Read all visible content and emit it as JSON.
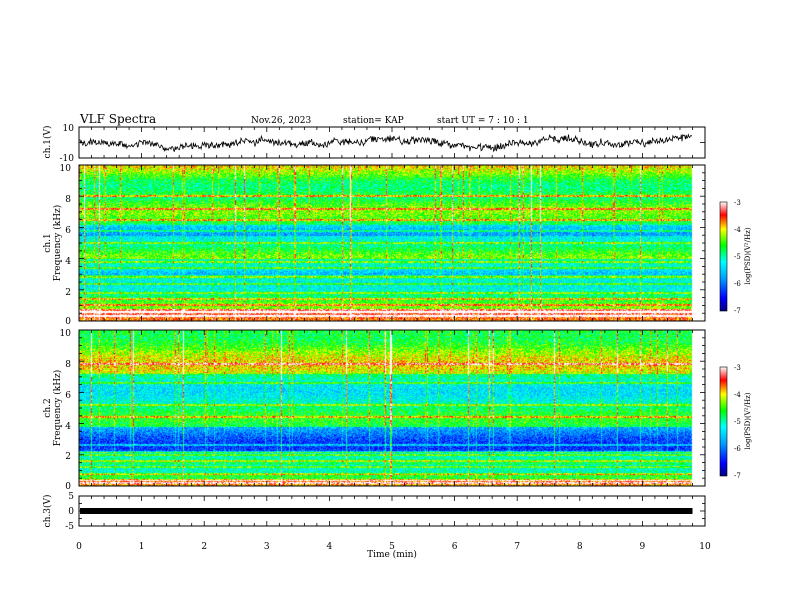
{
  "header": {
    "title": "VLF Spectra",
    "date": "Nov.26, 2023",
    "station": "station= KAP",
    "start": "start  UT =  7 : 10 : 1"
  },
  "chart_data": [
    {
      "type": "line",
      "ylabel": "ch.1(V)",
      "ylim": [
        -10,
        10
      ],
      "yticks": [
        "10",
        "-10"
      ],
      "xlim": [
        0,
        10
      ]
    },
    {
      "type": "heatmap",
      "ylabel_line1": "ch.1",
      "ylabel_line2": "Frequency (kHz)",
      "ylim": [
        0,
        10
      ],
      "yticks": [
        "0",
        "2",
        "4",
        "6",
        "8",
        "10"
      ],
      "colorbar": {
        "label": "log(PSD)(V²/Hz)",
        "range": [
          -7,
          -3
        ],
        "ticks": [
          "-3",
          "-4",
          "-5",
          "-6",
          "-7"
        ]
      }
    },
    {
      "type": "heatmap",
      "ylabel_line1": "ch.2",
      "ylabel_line2": "Frequency (kHz)",
      "ylim": [
        0,
        10
      ],
      "yticks": [
        "0",
        "2",
        "4",
        "6",
        "8",
        "10"
      ],
      "colorbar": {
        "label": "log(PSD)(V²/Hz)",
        "range": [
          -7,
          -3
        ],
        "ticks": [
          "-3",
          "-4",
          "-5",
          "-6",
          "-7"
        ]
      }
    },
    {
      "type": "line",
      "ylabel": "ch.3(V)",
      "ylim": [
        -5,
        5
      ],
      "yticks": [
        "5",
        "0",
        "-5"
      ],
      "xlim": [
        0,
        10
      ]
    }
  ],
  "xaxis": {
    "label": "Time (min)",
    "ticks": [
      "0",
      "1",
      "2",
      "3",
      "4",
      "5",
      "6",
      "7",
      "8",
      "9",
      "10"
    ],
    "data_end_min": 9.8
  }
}
